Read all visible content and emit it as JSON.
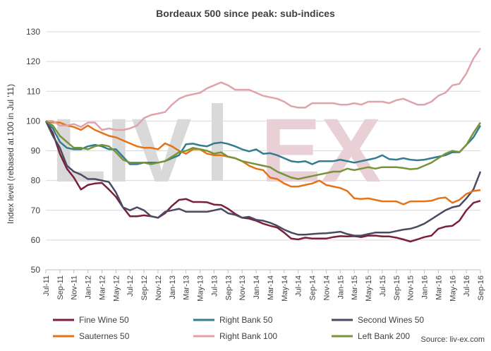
{
  "chart_data": {
    "type": "line",
    "title": "Bordeaux 500 since peak: sub-indices",
    "ylabel": "Index level (rebased at 100 in Jul '11)",
    "xlabel": "",
    "ylim": [
      50,
      130
    ],
    "y_ticks": [
      "50",
      "60",
      "70",
      "80",
      "90",
      "100",
      "110",
      "120",
      "130"
    ],
    "grid": "horizontal",
    "legend_position": "bottom",
    "source": "Source: liv-ex.com",
    "watermark": "LIV-EX",
    "x": [
      "Jul-11",
      "Aug-11",
      "Sep-11",
      "Oct-11",
      "Nov-11",
      "Dec-11",
      "Jan-12",
      "Feb-12",
      "Mar-12",
      "Apr-12",
      "May-12",
      "Jun-12",
      "Jul-12",
      "Aug-12",
      "Sep-12",
      "Oct-12",
      "Nov-12",
      "Dec-12",
      "Jan-13",
      "Feb-13",
      "Mar-13",
      "Apr-13",
      "May-13",
      "Jun-13",
      "Jul-13",
      "Aug-13",
      "Sep-13",
      "Oct-13",
      "Nov-13",
      "Dec-13",
      "Jan-14",
      "Feb-14",
      "Mar-14",
      "Apr-14",
      "May-14",
      "Jun-14",
      "Jul-14",
      "Aug-14",
      "Sep-14",
      "Oct-14",
      "Nov-14",
      "Dec-14",
      "Jan-15",
      "Feb-15",
      "Mar-15",
      "Apr-15",
      "May-15",
      "Jun-15",
      "Jul-15",
      "Aug-15",
      "Sep-15",
      "Oct-15",
      "Nov-15",
      "Dec-15",
      "Jan-16",
      "Feb-16",
      "Mar-16",
      "Apr-16",
      "May-16",
      "Jun-16",
      "Jul-16",
      "Aug-16",
      "Sep-16"
    ],
    "x_tick_labels": [
      "Jul-11",
      "Sep-11",
      "Nov-11",
      "Jan-12",
      "Mar-12",
      "May-12",
      "Jul-12",
      "Sep-12",
      "Nov-12",
      "Jan-13",
      "Mar-13",
      "May-13",
      "Jul-13",
      "Sep-13",
      "Nov-13",
      "Jan-14",
      "Mar-14",
      "May-14",
      "Jul-14",
      "Sep-14",
      "Nov-14",
      "Jan-15",
      "Mar-15",
      "May-15",
      "Jul-15",
      "Sep-15",
      "Nov-15",
      "Jan-16",
      "Mar-16",
      "May-16",
      "Jul-16",
      "Sep-16"
    ],
    "series": [
      {
        "name": "Fine Wine 50",
        "color": "#7b1f3a",
        "values": [
          100,
          96,
          89,
          84,
          81,
          77,
          78.5,
          79,
          79.2,
          77,
          74.5,
          71,
          68,
          68,
          68.3,
          68,
          67.5,
          69,
          71.5,
          73.5,
          73.8,
          72.8,
          72.8,
          72.7,
          71.9,
          71.8,
          70.5,
          68.8,
          67.5,
          67.2,
          66.5,
          65.5,
          64.8,
          64.2,
          62.5,
          60.5,
          60.2,
          60.8,
          60.5,
          60.5,
          60.5,
          61,
          61.3,
          61.2,
          61.3,
          61,
          61.5,
          61.5,
          61.2,
          61.2,
          60.8,
          60.2,
          59.5,
          60.2,
          61,
          61.5,
          63.8,
          64.5,
          64.8,
          66.5,
          70,
          72.5,
          73.2
        ]
      },
      {
        "name": "Right Bank 50",
        "color": "#327d8f",
        "values": [
          100,
          97.5,
          93,
          91,
          90.5,
          90.5,
          91.5,
          92,
          91.5,
          90.5,
          90.5,
          88,
          85.5,
          85.5,
          86,
          86,
          86,
          86.5,
          87.5,
          88.5,
          92.2,
          92.4,
          91.8,
          91.5,
          92.5,
          92.8,
          92.3,
          91.5,
          90.5,
          89.8,
          90.5,
          89,
          89.2,
          88.5,
          87.5,
          86.5,
          86.2,
          86.5,
          85.5,
          86.5,
          86.5,
          86.5,
          87,
          86.5,
          86,
          86.5,
          87,
          87.5,
          88.5,
          87.2,
          87,
          87.5,
          87,
          86.8,
          87,
          87.5,
          88,
          88.5,
          89.5,
          89.5,
          92,
          94.5,
          98.5
        ]
      },
      {
        "name": "Second Wines 50",
        "color": "#4a4a63",
        "values": [
          100,
          95,
          91,
          85,
          83,
          82,
          80.5,
          80.5,
          80,
          79.5,
          76,
          71,
          70,
          71,
          70,
          68,
          67.5,
          69.5,
          70,
          70.5,
          69.5,
          69.5,
          69.5,
          69.5,
          70,
          70.5,
          69,
          68.5,
          67.5,
          67.8,
          66.8,
          66.5,
          65.8,
          64.8,
          63.5,
          62.5,
          61.8,
          61.8,
          62,
          62.2,
          62.3,
          62.5,
          62.8,
          62,
          61.5,
          61.5,
          62,
          62.5,
          62.5,
          62.5,
          63,
          63.5,
          63.8,
          64.5,
          65.5,
          67,
          68.5,
          70,
          71,
          71.5,
          74,
          77,
          83
        ]
      },
      {
        "name": "Sauternes 50",
        "color": "#e57318",
        "values": [
          100,
          99.5,
          99.5,
          98.5,
          98,
          97,
          98.5,
          97,
          96,
          95,
          94.5,
          93.5,
          92.5,
          91.5,
          91,
          91,
          90.5,
          92.5,
          91.5,
          90,
          89,
          90.5,
          90.5,
          89,
          88.5,
          88.5,
          88,
          87.5,
          86.5,
          85,
          84,
          83.5,
          81,
          80.5,
          79,
          78,
          78,
          78.5,
          79,
          80,
          78.5,
          78,
          77.5,
          76.5,
          74,
          73.8,
          74,
          73.5,
          73,
          73,
          73,
          72,
          73,
          73,
          73,
          73.2,
          74,
          74.3,
          72.5,
          73.5,
          75.5,
          76.5,
          76.8
        ]
      },
      {
        "name": "Right Bank 100",
        "color": "#e0a2ab",
        "values": [
          100,
          100,
          98.5,
          98.5,
          99,
          98,
          99.5,
          99.5,
          97,
          97.5,
          97,
          97,
          97.5,
          98.5,
          101,
          102,
          102.5,
          103,
          105.5,
          107.5,
          108.5,
          109,
          109.5,
          111,
          112,
          113,
          112,
          110.5,
          110.5,
          110.5,
          109.5,
          108.5,
          108,
          107.5,
          106.5,
          105,
          104.5,
          104.5,
          106,
          106,
          106,
          106,
          105.5,
          105.5,
          106,
          105.5,
          106.5,
          106.5,
          106.5,
          106,
          107,
          107.5,
          106.5,
          105.5,
          105.5,
          106.5,
          108.5,
          109.5,
          112,
          112.5,
          116,
          121,
          124.5
        ]
      },
      {
        "name": "Left Bank 200",
        "color": "#77943a",
        "values": [
          100,
          98.5,
          95,
          93,
          91,
          91,
          90.5,
          91.5,
          92,
          91.5,
          89.5,
          87,
          86,
          86,
          86,
          85.5,
          86,
          86.5,
          88,
          89.5,
          90,
          91,
          90.5,
          90,
          89,
          89.5,
          88,
          87.5,
          86.5,
          86,
          85.5,
          85,
          84.5,
          83,
          82,
          81,
          80.5,
          81,
          81.5,
          82,
          82.5,
          83,
          83,
          84,
          83.5,
          84,
          84.5,
          84,
          84.5,
          84.5,
          84.5,
          84.2,
          83.8,
          84,
          85,
          86,
          87.5,
          89,
          90,
          89.5,
          92,
          96,
          99.5
        ]
      }
    ]
  }
}
